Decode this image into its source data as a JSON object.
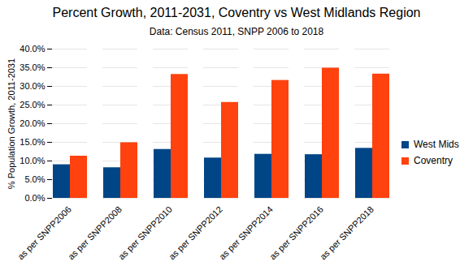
{
  "chart_data": {
    "type": "bar",
    "title": "Percent Growth, 2011-2031, Coventry vs West Midlands Region",
    "subtitle": "Data: Census 2011, SNPP 2006 to 2018",
    "y_label": "% Population Growth, 2011-2031",
    "categories": [
      "as per SNPP2006",
      "as per SNPP2008",
      "as per SNPP2010",
      "as per SNPP2012",
      "as per SNPP2014",
      "as per SNPP2016",
      "as per SNPP2018"
    ],
    "series": [
      {
        "name": "West Mids",
        "color": "#004586",
        "values": [
          9.0,
          8.2,
          13.1,
          10.8,
          11.8,
          11.7,
          13.4
        ]
      },
      {
        "name": "Coventry",
        "color": "#ff420e",
        "values": [
          11.3,
          14.9,
          33.2,
          25.7,
          31.6,
          34.9,
          33.3
        ]
      }
    ],
    "ylim": [
      0,
      40
    ],
    "yticks": [
      {
        "value": 0,
        "label": "0.0%"
      },
      {
        "value": 5,
        "label": "5.0%"
      },
      {
        "value": 10,
        "label": "10.0%"
      },
      {
        "value": 15,
        "label": "15.0%"
      },
      {
        "value": 20,
        "label": "20.0%"
      },
      {
        "value": 25,
        "label": "25.0%"
      },
      {
        "value": 30,
        "label": "30.0%"
      },
      {
        "value": 35,
        "label": "35.0%"
      },
      {
        "value": 40,
        "label": "40.0%"
      }
    ],
    "grid": true,
    "legend": "right"
  }
}
